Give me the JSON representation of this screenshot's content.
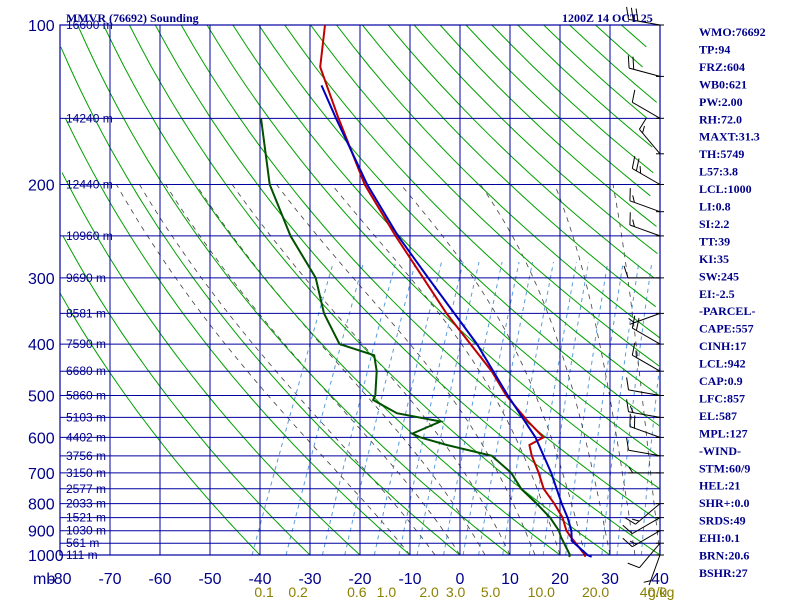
{
  "header": {
    "title": "MMVR (76692) Sounding",
    "valid_time": "1200Z 14 OCT 25"
  },
  "colors": {
    "isotherm_grid": "#0000a0",
    "dry_adiabat": "#00a000",
    "moist_adiabat": "#404040",
    "mixing_ratio": "#5a9bd8",
    "temperature": "#c00000",
    "dewpoint": "#005000",
    "parcel": "#0000c0",
    "wind_barb": "#000000",
    "text": "#00008b",
    "mixing_label": "#8b8000"
  },
  "chart_data": {
    "type": "skew-t",
    "title": "MMVR (76692) Sounding",
    "time": "1200Z 14 OCT 25",
    "pressure_levels": [
      100,
      200,
      300,
      400,
      500,
      600,
      700,
      800,
      900,
      1000
    ],
    "pressure_unit": "mb",
    "temperature_ticks": [
      -80,
      -70,
      -60,
      -50,
      -40,
      -30,
      -20,
      -10,
      0,
      10,
      20,
      30,
      40
    ],
    "temperature_tick_labels": [
      "-80",
      "-70",
      "-60",
      "-50",
      "-40",
      "-30",
      "-20",
      "-10",
      "0",
      "10",
      "20",
      "30",
      "40"
    ],
    "xlim": [
      -80,
      40
    ],
    "ylim": [
      100,
      1000
    ],
    "height_labels": [
      {
        "p": 100,
        "label": "16600 m"
      },
      {
        "p": 150,
        "label": "14240 m"
      },
      {
        "p": 200,
        "label": "12440 m"
      },
      {
        "p": 250,
        "label": "10960 m"
      },
      {
        "p": 300,
        "label": "9690 m"
      },
      {
        "p": 350,
        "label": "8581 m"
      },
      {
        "p": 400,
        "label": "7590 m"
      },
      {
        "p": 450,
        "label": "6680 m"
      },
      {
        "p": 500,
        "label": "5860 m"
      },
      {
        "p": 550,
        "label": "5103 m"
      },
      {
        "p": 600,
        "label": "4402 m"
      },
      {
        "p": 650,
        "label": "3756 m"
      },
      {
        "p": 700,
        "label": "3150 m"
      },
      {
        "p": 750,
        "label": "2577 m"
      },
      {
        "p": 800,
        "label": "2033 m"
      },
      {
        "p": 850,
        "label": "1521 m"
      },
      {
        "p": 900,
        "label": "1030 m"
      },
      {
        "p": 950,
        "label": "561 m"
      },
      {
        "p": 1000,
        "label": "111 m"
      }
    ],
    "mixing_ratio_labels": [
      "0.1",
      "0.2",
      "0.6",
      "1.0",
      "2.0",
      "3.0",
      "5.0",
      "10.0",
      "20.0",
      "40.0"
    ],
    "mixing_ratio_unit": "g/kg",
    "series": [
      {
        "name": "temperature",
        "points": [
          [
            1008,
            25.2
          ],
          [
            1000,
            25.0
          ],
          [
            925,
            20.5
          ],
          [
            900,
            19.0
          ],
          [
            850,
            17.0
          ],
          [
            800,
            14.0
          ],
          [
            750,
            10.5
          ],
          [
            700,
            8.0
          ],
          [
            650,
            5.0
          ],
          [
            620,
            3.5
          ],
          [
            600,
            5.6
          ],
          [
            560,
            1.0
          ],
          [
            500,
            -5.8
          ],
          [
            450,
            -11.0
          ],
          [
            400,
            -17.8
          ],
          [
            350,
            -25.5
          ],
          [
            300,
            -33.5
          ],
          [
            250,
            -43.0
          ],
          [
            200,
            -54.0
          ],
          [
            150,
            -65.5
          ],
          [
            120,
            -74.0
          ],
          [
            100,
            -77.0
          ]
        ]
      },
      {
        "name": "dewpoint",
        "points": [
          [
            1008,
            22.0
          ],
          [
            1000,
            22.0
          ],
          [
            925,
            18.5
          ],
          [
            900,
            17.5
          ],
          [
            850,
            14.5
          ],
          [
            800,
            10.5
          ],
          [
            750,
            6.0
          ],
          [
            700,
            2.5
          ],
          [
            650,
            -3.0
          ],
          [
            620,
            -13.0
          ],
          [
            600,
            -19.0
          ],
          [
            590,
            -21.0
          ],
          [
            560,
            -16.5
          ],
          [
            540,
            -26.0
          ],
          [
            510,
            -32.0
          ],
          [
            500,
            -32.0
          ],
          [
            450,
            -34.0
          ],
          [
            420,
            -36.0
          ],
          [
            400,
            -44.0
          ],
          [
            350,
            -50.0
          ],
          [
            300,
            -55.0
          ],
          [
            250,
            -64.0
          ],
          [
            200,
            -73.0
          ],
          [
            150,
            -81.0
          ]
        ]
      },
      {
        "name": "parcel",
        "points": [
          [
            1008,
            26.5
          ],
          [
            1000,
            25.5
          ],
          [
            940,
            21.0
          ],
          [
            900,
            20.0
          ],
          [
            850,
            18.0
          ],
          [
            800,
            15.5
          ],
          [
            700,
            10.5
          ],
          [
            600,
            4.0
          ],
          [
            500,
            -5.5
          ],
          [
            400,
            -16.5
          ],
          [
            300,
            -32.5
          ],
          [
            250,
            -42.5
          ],
          [
            200,
            -53.5
          ],
          [
            150,
            -66.0
          ],
          [
            130,
            -72.0
          ]
        ]
      }
    ],
    "wind_barbs": [
      {
        "p": 100,
        "dir": 280,
        "spd": 30
      },
      {
        "p": 125,
        "dir": 285,
        "spd": 20
      },
      {
        "p": 150,
        "dir": 300,
        "spd": 10
      },
      {
        "p": 175,
        "dir": 320,
        "spd": 15
      },
      {
        "p": 200,
        "dir": 300,
        "spd": 25
      },
      {
        "p": 225,
        "dir": 290,
        "spd": 15
      },
      {
        "p": 250,
        "dir": 290,
        "spd": 15
      },
      {
        "p": 300,
        "dir": 270,
        "spd": 10
      },
      {
        "p": 350,
        "dir": 250,
        "spd": 5
      },
      {
        "p": 400,
        "dir": 300,
        "spd": 20
      },
      {
        "p": 450,
        "dir": 300,
        "spd": 15
      },
      {
        "p": 500,
        "dir": 280,
        "spd": 10
      },
      {
        "p": 550,
        "dir": 280,
        "spd": 15
      },
      {
        "p": 600,
        "dir": 290,
        "spd": 20
      },
      {
        "p": 650,
        "dir": 280,
        "spd": 10
      },
      {
        "p": 700,
        "dir": 270,
        "spd": 5
      },
      {
        "p": 800,
        "dir": 230,
        "spd": 15
      },
      {
        "p": 850,
        "dir": 240,
        "spd": 10
      },
      {
        "p": 900,
        "dir": 240,
        "spd": 15
      },
      {
        "p": 950,
        "dir": 220,
        "spd": 10
      },
      {
        "p": 1000,
        "dir": 200,
        "spd": 5
      }
    ]
  },
  "indices": [
    "WMO:76692",
    "TP:94",
    "FRZ:604",
    "WB0:621",
    "PW:2.00",
    "RH:72.0",
    "MAXT:31.3",
    "TH:5749",
    "L57:3.8",
    "LCL:1000",
    "LI:0.8",
    "SI:2.2",
    "TT:39",
    "KI:35",
    "SW:245",
    "EI:-2.5",
    "-PARCEL-",
    "CAPE:557",
    "CINH:17",
    "LCL:942",
    "CAP:0.9",
    "LFC:857",
    "EL:587",
    "MPL:127",
    "-WIND-",
    "STM:60/9",
    "HEL:21",
    "SHR+:0.0",
    "SRDS:49",
    "EHI:0.1",
    "BRN:20.6",
    "BSHR:27"
  ],
  "axis_unit_label": "mb"
}
